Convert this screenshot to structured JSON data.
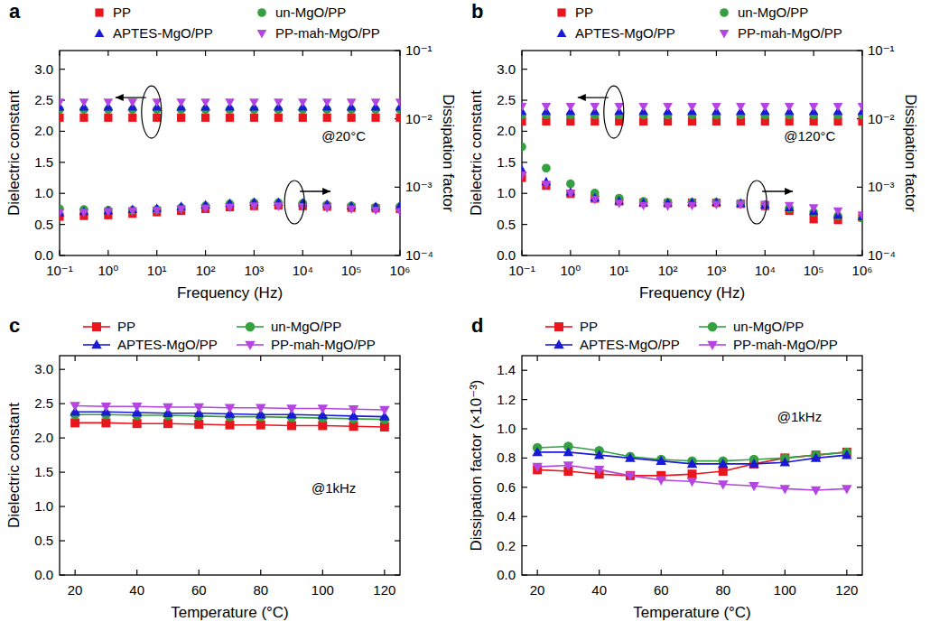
{
  "chart_data": [
    {
      "type": "scatter",
      "title": "a",
      "annotations": [
        "@20°C"
      ],
      "x_label": "Frequency (Hz)",
      "y_label": "Dielectric constant",
      "y2_label": "Dissipation factor",
      "log": [
        "x",
        "y2"
      ],
      "grid": false,
      "legend": "top",
      "x": [
        0.1,
        0.316,
        1,
        3.16,
        10,
        31.6,
        100,
        316,
        1000,
        3160,
        10000,
        31600,
        100000,
        316000,
        1000000
      ],
      "xlim": [
        0.1,
        1000000
      ],
      "xticks": [
        {
          "value": 0.1,
          "label": "10⁻¹"
        },
        {
          "value": 1,
          "label": "10⁰"
        },
        {
          "value": 10,
          "label": "10¹"
        },
        {
          "value": 100,
          "label": "10²"
        },
        {
          "value": 1000,
          "label": "10³"
        },
        {
          "value": 10000,
          "label": "10⁴"
        },
        {
          "value": 100000,
          "label": "10⁵"
        },
        {
          "value": 1000000,
          "label": "10⁶"
        }
      ],
      "ylim": [
        0,
        3.3
      ],
      "yticks": [
        {
          "value": 0,
          "label": "0.0"
        },
        0.5,
        {
          "value": 1,
          "label": "1.0"
        },
        1.5,
        {
          "value": 2,
          "label": "2.0"
        },
        2.5,
        {
          "value": 3,
          "label": "3.0"
        }
      ],
      "y2lim": [
        0.0001,
        0.1
      ],
      "y2ticks": [
        {
          "value": 0.0001,
          "label": "10⁻⁴"
        },
        {
          "value": 0.001,
          "label": "10⁻³"
        },
        {
          "value": 0.01,
          "label": "10⁻²"
        },
        {
          "value": 0.1,
          "label": "10⁻¹"
        }
      ],
      "series": [
        {
          "name": "PP",
          "color": "#e8171d",
          "marker": "square",
          "values": [
            2.22,
            2.22,
            2.22,
            2.22,
            2.22,
            2.22,
            2.22,
            2.22,
            2.22,
            2.22,
            2.22,
            2.22,
            2.22,
            2.22,
            2.22
          ]
        },
        {
          "name": "un-MgO/PP",
          "color": "#34a040",
          "marker": "circle",
          "values": [
            2.35,
            2.35,
            2.35,
            2.35,
            2.35,
            2.35,
            2.35,
            2.35,
            2.35,
            2.35,
            2.35,
            2.35,
            2.35,
            2.35,
            2.35
          ]
        },
        {
          "name": "APTES-MgO/PP",
          "color": "#1a1ad6",
          "marker": "triangle",
          "values": [
            2.39,
            2.39,
            2.39,
            2.39,
            2.39,
            2.39,
            2.39,
            2.39,
            2.39,
            2.39,
            2.39,
            2.39,
            2.39,
            2.39,
            2.39
          ]
        },
        {
          "name": "PP-mah-MgO/PP",
          "color": "#b545e0",
          "marker": "triangle-down",
          "values": [
            2.47,
            2.47,
            2.47,
            2.47,
            2.47,
            2.47,
            2.47,
            2.47,
            2.47,
            2.47,
            2.47,
            2.47,
            2.47,
            2.47,
            2.47
          ]
        },
        {
          "name": "PP",
          "color": "#e8171d",
          "marker": "square",
          "axis": "y2",
          "values": [
            0.00037,
            0.00038,
            0.00039,
            0.00041,
            0.00043,
            0.00045,
            0.00048,
            0.00051,
            0.00053,
            0.00054,
            0.00053,
            0.00052,
            0.0005,
            0.00049,
            0.00048
          ]
        },
        {
          "name": "un-MgO/PP",
          "color": "#34a040",
          "marker": "circle",
          "axis": "y2",
          "values": [
            0.00048,
            0.00047,
            0.00046,
            0.00046,
            0.00047,
            0.0005,
            0.00053,
            0.00057,
            0.00059,
            0.00059,
            0.00058,
            0.00055,
            0.00053,
            0.00051,
            0.00052
          ]
        },
        {
          "name": "APTES-MgO/PP",
          "color": "#1a1ad6",
          "marker": "triangle",
          "axis": "y2",
          "values": [
            0.00042,
            0.00044,
            0.00045,
            0.00047,
            0.00049,
            0.00052,
            0.00055,
            0.00058,
            0.0006,
            0.0006,
            0.00059,
            0.00056,
            0.00053,
            0.00052,
            0.00053
          ]
        },
        {
          "name": "PP-mah-MgO/PP",
          "color": "#b545e0",
          "marker": "triangle-down",
          "axis": "y2",
          "values": [
            0.00043,
            0.00043,
            0.00044,
            0.00045,
            0.00046,
            0.00048,
            0.00049,
            0.00051,
            0.00053,
            0.00053,
            0.00052,
            0.0005,
            0.00048,
            0.00046,
            0.00044
          ]
        }
      ]
    },
    {
      "type": "scatter",
      "title": "b",
      "annotations": [
        "@120°C"
      ],
      "x_label": "Frequency (Hz)",
      "y_label": "Dielectric constant",
      "y2_label": "Dissipation factor",
      "log": [
        "x",
        "y2"
      ],
      "grid": false,
      "legend": "top",
      "x": [
        0.1,
        0.316,
        1,
        3.16,
        10,
        31.6,
        100,
        316,
        1000,
        3160,
        10000,
        31600,
        100000,
        316000,
        1000000
      ],
      "xlim": [
        0.1,
        1000000
      ],
      "xticks": [
        {
          "value": 0.1,
          "label": "10⁻¹"
        },
        {
          "value": 1,
          "label": "10⁰"
        },
        {
          "value": 10,
          "label": "10¹"
        },
        {
          "value": 100,
          "label": "10²"
        },
        {
          "value": 1000,
          "label": "10³"
        },
        {
          "value": 10000,
          "label": "10⁴"
        },
        {
          "value": 100000,
          "label": "10⁵"
        },
        {
          "value": 1000000,
          "label": "10⁶"
        }
      ],
      "ylim": [
        0,
        3.3
      ],
      "yticks": [
        {
          "value": 0,
          "label": "0.0"
        },
        0.5,
        {
          "value": 1,
          "label": "1.0"
        },
        1.5,
        {
          "value": 2,
          "label": "2.0"
        },
        2.5,
        {
          "value": 3,
          "label": "3.0"
        }
      ],
      "y2lim": [
        0.0001,
        0.1
      ],
      "y2ticks": [
        {
          "value": 0.0001,
          "label": "10⁻⁴"
        },
        {
          "value": 0.001,
          "label": "10⁻³"
        },
        {
          "value": 0.01,
          "label": "10⁻²"
        },
        {
          "value": 0.1,
          "label": "10⁻¹"
        }
      ],
      "series": [
        {
          "name": "PP",
          "color": "#e8171d",
          "marker": "square",
          "values": [
            2.16,
            2.16,
            2.16,
            2.16,
            2.16,
            2.16,
            2.16,
            2.16,
            2.16,
            2.16,
            2.16,
            2.16,
            2.16,
            2.16,
            2.16
          ]
        },
        {
          "name": "un-MgO/PP",
          "color": "#34a040",
          "marker": "circle",
          "values": [
            2.26,
            2.26,
            2.26,
            2.26,
            2.26,
            2.26,
            2.26,
            2.26,
            2.26,
            2.26,
            2.26,
            2.26,
            2.26,
            2.26,
            2.26
          ]
        },
        {
          "name": "APTES-MgO/PP",
          "color": "#1a1ad6",
          "marker": "triangle",
          "values": [
            2.32,
            2.32,
            2.32,
            2.32,
            2.32,
            2.32,
            2.32,
            2.32,
            2.32,
            2.32,
            2.32,
            2.32,
            2.32,
            2.32,
            2.32
          ]
        },
        {
          "name": "PP-mah-MgO/PP",
          "color": "#b545e0",
          "marker": "triangle-down",
          "values": [
            2.4,
            2.4,
            2.4,
            2.4,
            2.4,
            2.4,
            2.4,
            2.4,
            2.4,
            2.4,
            2.4,
            2.4,
            2.4,
            2.4,
            2.4
          ]
        },
        {
          "name": "PP",
          "color": "#e8171d",
          "marker": "square",
          "axis": "y2",
          "values": [
            0.00137,
            0.00105,
            0.0008,
            0.00068,
            0.00062,
            0.00059,
            0.00058,
            0.00059,
            0.00059,
            0.00057,
            0.00053,
            0.00045,
            0.00034,
            0.00033,
            0.00036
          ]
        },
        {
          "name": "un-MgO/PP",
          "color": "#34a040",
          "marker": "circle",
          "axis": "y2",
          "values": [
            0.0039,
            0.0019,
            0.00112,
            0.00082,
            0.00069,
            0.00062,
            0.0006,
            0.0006,
            0.0006,
            0.00058,
            0.00055,
            0.00049,
            0.00043,
            0.00038,
            0.00035
          ]
        },
        {
          "name": "APTES-MgO/PP",
          "color": "#1a1ad6",
          "marker": "triangle",
          "axis": "y2",
          "values": [
            0.0018,
            0.0012,
            0.00085,
            0.0007,
            0.00063,
            0.00059,
            0.00059,
            0.0006,
            0.0006,
            0.00058,
            0.00055,
            0.0005,
            0.00044,
            0.00039,
            0.00037
          ]
        },
        {
          "name": "PP-mah-MgO/PP",
          "color": "#b545e0",
          "marker": "triangle-down",
          "axis": "y2",
          "values": [
            0.0015,
            0.0011,
            0.00081,
            0.00066,
            0.00058,
            0.00054,
            0.00053,
            0.00054,
            0.00056,
            0.00056,
            0.00056,
            0.00054,
            0.0005,
            0.00045,
            0.00039
          ]
        }
      ]
    },
    {
      "type": "line",
      "title": "c",
      "annotations": [
        "@1kHz"
      ],
      "x_label": "Temperature (°C)",
      "y_label": "Dielectric constant",
      "grid": false,
      "legend": "top",
      "x": [
        20,
        30,
        40,
        50,
        60,
        70,
        80,
        90,
        100,
        110,
        120
      ],
      "xlim": [
        15,
        125
      ],
      "xticks": [
        20,
        40,
        60,
        80,
        100,
        120
      ],
      "ylim": [
        0,
        3.2
      ],
      "yticks": [
        {
          "value": 0,
          "label": "0.0"
        },
        0.5,
        {
          "value": 1,
          "label": "1.0"
        },
        1.5,
        {
          "value": 2,
          "label": "2.0"
        },
        2.5,
        {
          "value": 3,
          "label": "3.0"
        }
      ],
      "series": [
        {
          "name": "PP",
          "color": "#e8171d",
          "marker": "square",
          "values": [
            2.22,
            2.22,
            2.21,
            2.21,
            2.2,
            2.19,
            2.19,
            2.18,
            2.18,
            2.17,
            2.16
          ]
        },
        {
          "name": "un-MgO/PP",
          "color": "#34a040",
          "marker": "circle",
          "values": [
            2.34,
            2.34,
            2.33,
            2.33,
            2.32,
            2.31,
            2.31,
            2.3,
            2.29,
            2.28,
            2.27
          ]
        },
        {
          "name": "APTES-MgO/PP",
          "color": "#1a1ad6",
          "marker": "triangle",
          "values": [
            2.38,
            2.38,
            2.37,
            2.36,
            2.36,
            2.35,
            2.34,
            2.34,
            2.33,
            2.32,
            2.31
          ]
        },
        {
          "name": "PP-mah-MgO/PP",
          "color": "#b545e0",
          "marker": "triangle-down",
          "values": [
            2.47,
            2.46,
            2.46,
            2.45,
            2.45,
            2.44,
            2.44,
            2.43,
            2.43,
            2.42,
            2.41
          ]
        }
      ]
    },
    {
      "type": "line",
      "title": "d",
      "annotations": [
        "@1kHz"
      ],
      "x_label": "Temperature (°C)",
      "y_label": "Dissipation factor (×10⁻³)",
      "grid": false,
      "legend": "top",
      "x": [
        20,
        30,
        40,
        50,
        60,
        70,
        80,
        90,
        100,
        110,
        120
      ],
      "xlim": [
        15,
        125
      ],
      "xticks": [
        20,
        40,
        60,
        80,
        100,
        120
      ],
      "ylim": [
        0,
        1.5
      ],
      "yticks": [
        {
          "value": 0,
          "label": "0.0"
        },
        0.2,
        0.4,
        0.6,
        0.8,
        {
          "value": 1,
          "label": "1.0"
        },
        1.2,
        1.4
      ],
      "series": [
        {
          "name": "PP",
          "color": "#e8171d",
          "marker": "square",
          "values": [
            0.72,
            0.71,
            0.69,
            0.68,
            0.68,
            0.69,
            0.71,
            0.76,
            0.8,
            0.82,
            0.84
          ]
        },
        {
          "name": "un-MgO/PP",
          "color": "#34a040",
          "marker": "circle",
          "values": [
            0.87,
            0.88,
            0.85,
            0.81,
            0.79,
            0.78,
            0.78,
            0.79,
            0.8,
            0.82,
            0.84
          ]
        },
        {
          "name": "APTES-MgO/PP",
          "color": "#1a1ad6",
          "marker": "triangle",
          "values": [
            0.84,
            0.84,
            0.82,
            0.8,
            0.78,
            0.76,
            0.76,
            0.76,
            0.77,
            0.8,
            0.82
          ]
        },
        {
          "name": "PP-mah-MgO/PP",
          "color": "#b545e0",
          "marker": "triangle-down",
          "values": [
            0.74,
            0.75,
            0.72,
            0.68,
            0.65,
            0.64,
            0.62,
            0.61,
            0.59,
            0.58,
            0.59
          ]
        }
      ]
    }
  ]
}
